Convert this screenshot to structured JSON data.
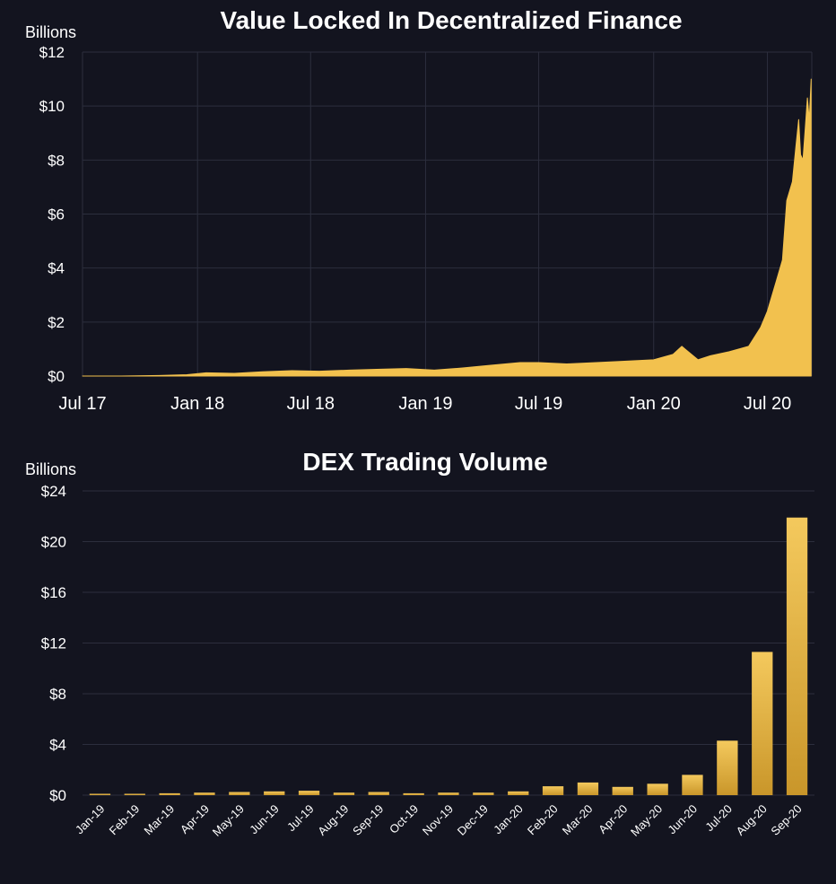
{
  "colors": {
    "background": "#13141f",
    "grid": "#2c2e3d",
    "text": "#ffffff",
    "area_fill": "#f2c14e",
    "bar_fill_top": "#f4c95d",
    "bar_fill_bottom": "#c9962a"
  },
  "chart_data": [
    {
      "type": "area",
      "title": "Value Locked In Decentralized Finance",
      "ylabel": "Billions",
      "xlabel": "",
      "ylim": [
        0,
        12
      ],
      "y_ticks": [
        0,
        2,
        4,
        6,
        8,
        10,
        12
      ],
      "y_tick_labels": [
        "$0",
        "$2",
        "$4",
        "$6",
        "$8",
        "$10",
        "$12"
      ],
      "x_ticks": [
        "2017-07",
        "2018-01",
        "2018-07",
        "2019-01",
        "2019-07",
        "2020-01",
        "2020-07"
      ],
      "x_tick_labels": [
        "Jul 17",
        "Jan 18",
        "Jul 18",
        "Jan 19",
        "Jul 19",
        "Jan 20",
        "Jul 20"
      ],
      "x_range": [
        "2017-07",
        "2020-09-10"
      ],
      "grid": true,
      "series": [
        {
          "x": [
            "2017-07-01",
            "2017-09-01",
            "2017-11-01",
            "2017-12-15",
            "2018-01-15",
            "2018-03-01",
            "2018-04-15",
            "2018-06-01",
            "2018-07-15",
            "2018-09-01",
            "2018-10-15",
            "2018-12-01",
            "2019-01-15",
            "2019-03-01",
            "2019-04-15",
            "2019-06-01",
            "2019-07-01",
            "2019-08-15",
            "2019-10-01",
            "2019-11-15",
            "2020-01-01",
            "2020-02-01",
            "2020-02-15",
            "2020-03-12",
            "2020-04-01",
            "2020-05-01",
            "2020-06-01",
            "2020-06-20",
            "2020-07-01",
            "2020-07-15",
            "2020-07-25",
            "2020-08-01",
            "2020-08-10",
            "2020-08-16",
            "2020-08-20",
            "2020-08-23",
            "2020-08-27",
            "2020-08-31",
            "2020-09-03",
            "2020-09-06",
            "2020-09-09"
          ],
          "y": [
            0.0,
            0.0,
            0.02,
            0.05,
            0.12,
            0.1,
            0.16,
            0.2,
            0.18,
            0.22,
            0.25,
            0.28,
            0.22,
            0.3,
            0.4,
            0.5,
            0.5,
            0.45,
            0.5,
            0.55,
            0.6,
            0.8,
            1.1,
            0.6,
            0.75,
            0.9,
            1.1,
            1.8,
            2.4,
            3.5,
            4.3,
            6.5,
            7.2,
            8.6,
            9.5,
            8.2,
            8.0,
            9.3,
            10.3,
            9.5,
            11.0
          ]
        }
      ]
    },
    {
      "type": "bar",
      "title": "DEX Trading Volume",
      "ylabel": "Billions",
      "xlabel": "",
      "ylim": [
        0,
        24
      ],
      "y_ticks": [
        0,
        4,
        8,
        12,
        16,
        20,
        24
      ],
      "y_tick_labels": [
        "$0",
        "$4",
        "$8",
        "$12",
        "$16",
        "$20",
        "$24"
      ],
      "categories": [
        "Jan-19",
        "Feb-19",
        "Mar-19",
        "Apr-19",
        "May-19",
        "Jun-19",
        "Jul-19",
        "Aug-19",
        "Sep-19",
        "Oct-19",
        "Nov-19",
        "Dec-19",
        "Jan-20",
        "Feb-20",
        "Mar-20",
        "Apr-20",
        "May-20",
        "Jun-20",
        "Jul-20",
        "Aug-20",
        "Sep-20"
      ],
      "values": [
        0.05,
        0.1,
        0.15,
        0.2,
        0.25,
        0.3,
        0.35,
        0.2,
        0.25,
        0.15,
        0.2,
        0.2,
        0.3,
        0.7,
        1.0,
        0.65,
        0.9,
        1.6,
        4.3,
        11.3,
        21.9
      ],
      "grid": true
    }
  ]
}
